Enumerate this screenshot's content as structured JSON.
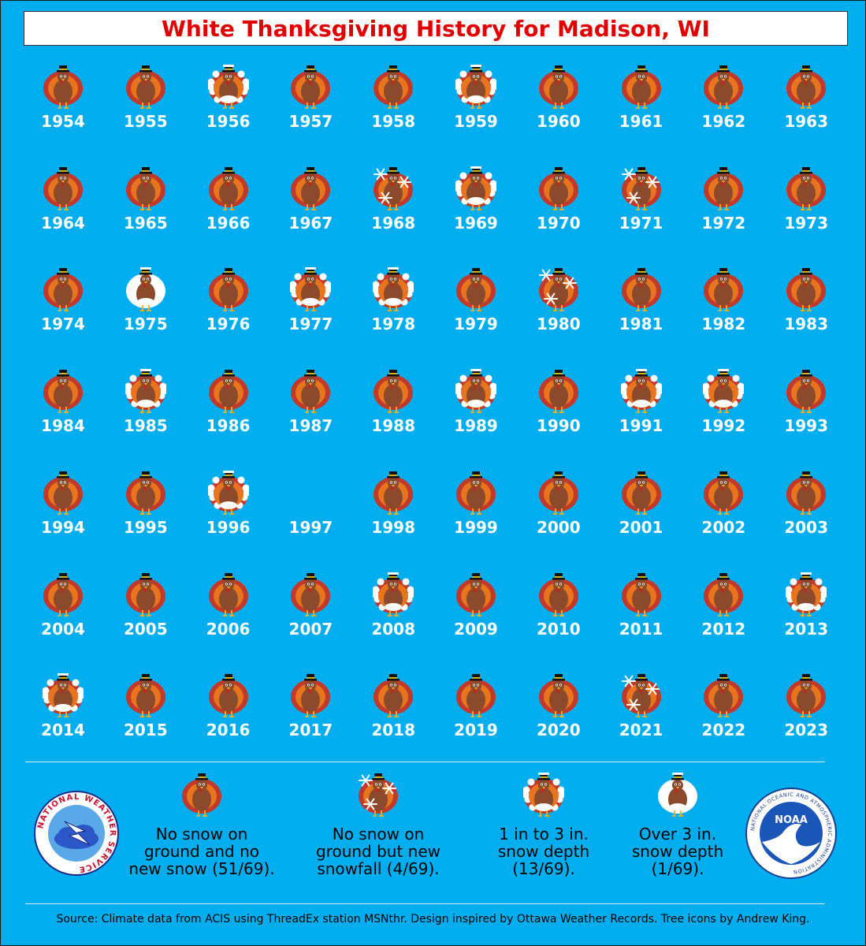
{
  "chart_data": {
    "type": "table",
    "title": "White Thanksgiving History for Madison, WI",
    "categories": [
      {
        "key": "none",
        "label": "No snow on\nground and no\nnew snow (51/69)."
      },
      {
        "key": "new",
        "label": "No snow on\nground but new\nsnowfall (4/69)."
      },
      {
        "key": "light",
        "label": "1 in to 3 in.\nsnow depth\n(13/69)."
      },
      {
        "key": "deep",
        "label": "Over 3 in.\nsnow depth\n(1/69)."
      }
    ],
    "years": [
      {
        "year": "1954",
        "category": "none"
      },
      {
        "year": "1955",
        "category": "none"
      },
      {
        "year": "1956",
        "category": "light"
      },
      {
        "year": "1957",
        "category": "none"
      },
      {
        "year": "1958",
        "category": "none"
      },
      {
        "year": "1959",
        "category": "light"
      },
      {
        "year": "1960",
        "category": "none"
      },
      {
        "year": "1961",
        "category": "none"
      },
      {
        "year": "1962",
        "category": "none"
      },
      {
        "year": "1963",
        "category": "none"
      },
      {
        "year": "1964",
        "category": "none"
      },
      {
        "year": "1965",
        "category": "none"
      },
      {
        "year": "1966",
        "category": "none"
      },
      {
        "year": "1967",
        "category": "none"
      },
      {
        "year": "1968",
        "category": "new"
      },
      {
        "year": "1969",
        "category": "light"
      },
      {
        "year": "1970",
        "category": "none"
      },
      {
        "year": "1971",
        "category": "new"
      },
      {
        "year": "1972",
        "category": "none"
      },
      {
        "year": "1973",
        "category": "none"
      },
      {
        "year": "1974",
        "category": "none"
      },
      {
        "year": "1975",
        "category": "deep"
      },
      {
        "year": "1976",
        "category": "none"
      },
      {
        "year": "1977",
        "category": "light"
      },
      {
        "year": "1978",
        "category": "light"
      },
      {
        "year": "1979",
        "category": "none"
      },
      {
        "year": "1980",
        "category": "new"
      },
      {
        "year": "1981",
        "category": "none"
      },
      {
        "year": "1982",
        "category": "none"
      },
      {
        "year": "1983",
        "category": "none"
      },
      {
        "year": "1984",
        "category": "none"
      },
      {
        "year": "1985",
        "category": "light"
      },
      {
        "year": "1986",
        "category": "none"
      },
      {
        "year": "1987",
        "category": "none"
      },
      {
        "year": "1988",
        "category": "none"
      },
      {
        "year": "1989",
        "category": "light"
      },
      {
        "year": "1990",
        "category": "none"
      },
      {
        "year": "1991",
        "category": "light"
      },
      {
        "year": "1992",
        "category": "light"
      },
      {
        "year": "1993",
        "category": "none"
      },
      {
        "year": "1994",
        "category": "none"
      },
      {
        "year": "1995",
        "category": "none"
      },
      {
        "year": "1996",
        "category": "light"
      },
      {
        "year": "1997",
        "category": "missing"
      },
      {
        "year": "1998",
        "category": "none"
      },
      {
        "year": "1999",
        "category": "none"
      },
      {
        "year": "2000",
        "category": "none"
      },
      {
        "year": "2001",
        "category": "none"
      },
      {
        "year": "2002",
        "category": "none"
      },
      {
        "year": "2003",
        "category": "none"
      },
      {
        "year": "2004",
        "category": "none"
      },
      {
        "year": "2005",
        "category": "none"
      },
      {
        "year": "2006",
        "category": "none"
      },
      {
        "year": "2007",
        "category": "none"
      },
      {
        "year": "2008",
        "category": "light"
      },
      {
        "year": "2009",
        "category": "none"
      },
      {
        "year": "2010",
        "category": "none"
      },
      {
        "year": "2011",
        "category": "none"
      },
      {
        "year": "2012",
        "category": "none"
      },
      {
        "year": "2013",
        "category": "light"
      },
      {
        "year": "2014",
        "category": "light"
      },
      {
        "year": "2015",
        "category": "none"
      },
      {
        "year": "2016",
        "category": "none"
      },
      {
        "year": "2017",
        "category": "none"
      },
      {
        "year": "2018",
        "category": "none"
      },
      {
        "year": "2019",
        "category": "none"
      },
      {
        "year": "2020",
        "category": "none"
      },
      {
        "year": "2021",
        "category": "new"
      },
      {
        "year": "2022",
        "category": "none"
      },
      {
        "year": "2023",
        "category": "none"
      }
    ]
  },
  "footer": {
    "source": "Source: Climate data from ACIS using ThreadEx station MSNthr. Design inspired by Ottawa Weather Records. Tree icons by Andrew King."
  },
  "logos": {
    "nws_text": "NATIONAL WEATHER SERVICE",
    "noaa_text": "NOAA",
    "noaa_ring_text": "NATIONAL OCEANIC AND ATMOSPHERIC ADMINISTRATION"
  },
  "colors": {
    "background": "#00AEEF",
    "title": "#E00000",
    "turkey_body": "#8B4A2B",
    "feather_red": "#C0392B",
    "feather_orange": "#E8741E",
    "snow": "#FFFFFF"
  }
}
